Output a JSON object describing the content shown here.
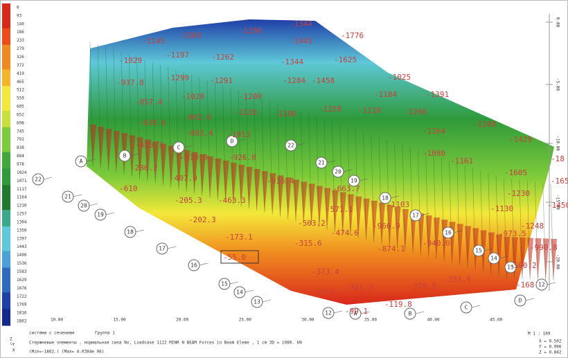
{
  "legend": {
    "values": [
      "0",
      "93",
      "140",
      "186",
      "233",
      "279",
      "326",
      "372",
      "419",
      "465",
      "512",
      "559",
      "605",
      "652",
      "698",
      "745",
      "791",
      "838",
      "884",
      "978",
      "1024",
      "1071",
      "1117",
      "1164",
      "1210",
      "1257",
      "1304",
      "1350",
      "1397",
      "1443",
      "1490",
      "1536",
      "1583",
      "1629",
      "1676",
      "1722",
      "1769",
      "1816",
      "1862"
    ]
  },
  "x_axis": {
    "labels": [
      "10.00",
      "15.00",
      "20.00",
      "25.00",
      "30.00",
      "35.00",
      "40.00",
      "45.00"
    ]
  },
  "z_axis": {
    "labels": [
      "0.00",
      "-5.00",
      "-10.00",
      "-15.00",
      "-20.00"
    ]
  },
  "nodes": [
    "A",
    "B",
    "C",
    "D",
    "22",
    "21",
    "20",
    "19",
    "18",
    "17",
    "16",
    "15",
    "14",
    "13",
    "12",
    "22",
    "21",
    "20",
    "19",
    "18",
    "17",
    "16",
    "15",
    "14",
    "13",
    "12",
    "A",
    "B",
    "C",
    "D"
  ],
  "force_labels": [
    "-1303",
    "-1298",
    "-1344",
    "-1776",
    "-1145",
    "-1197",
    "-1262",
    "-1445",
    "-1029",
    "-1344",
    "-1625",
    "-937.8",
    "-1299",
    "-1291",
    "-1284",
    "-1458",
    "-1025",
    "-857.4",
    "-1020",
    "-1200",
    "-1184",
    "-1391",
    "-639.6",
    "-802.9",
    "-1129",
    "-1286",
    "-1258",
    "-1118",
    "-1266",
    "-893.4",
    "-1013",
    "-1164",
    "-1208",
    "-455.7",
    "-810.9",
    "-926.8",
    "-1080",
    "-1429",
    "-286.2",
    "-1161",
    "-1605",
    "-18",
    "-610",
    "-407.0",
    "-916.4",
    "-663.7",
    "-1230",
    "-165",
    "-205.3",
    "-463.3",
    "-571.1",
    "-1103",
    "-1130",
    "-1450",
    "-202.3",
    "-503.2",
    "-966.9",
    "-1248",
    "-173.1",
    "-474.6",
    "-940.0",
    "-973.5",
    "-315.6",
    "-990.8",
    "-55.0",
    "-874.1",
    "-590.2",
    "-373.4",
    "-379.3",
    "-341.3",
    "-353.9",
    "-79.4",
    "-119.8",
    "-168",
    "-99.1"
  ],
  "footer": {
    "system": "система с сечением",
    "group": "Группа 1",
    "line2": "Стержневые элементы , нормальная сила Nx, Loadcase 1122 MINR N BEAM Forces in Beam Eleme   , 1 cm 3D = 1080. kN",
    "line3": "(Min=-1862.) (Max= 4.0384e 06)"
  },
  "info": {
    "scale": "M 1 : 169",
    "x": "X = 0.502",
    "y": "Y = 0.906",
    "z": "Z = 0.842"
  }
}
